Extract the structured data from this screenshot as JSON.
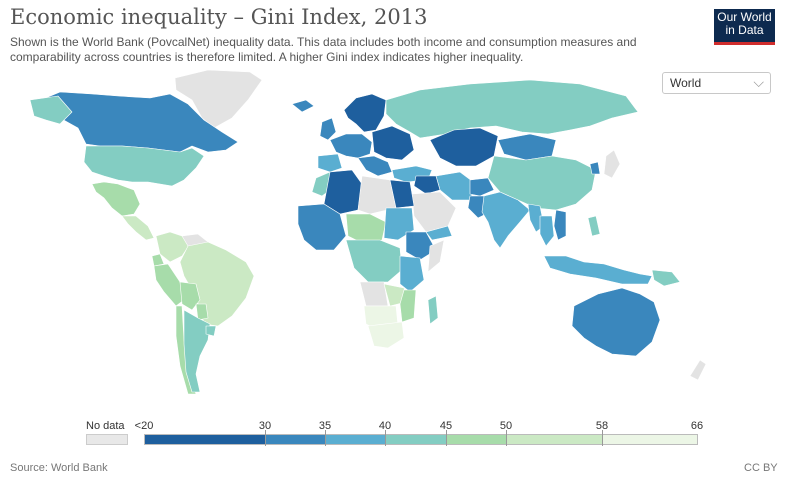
{
  "header": {
    "title": "Economic inequality – Gini Index, 2013",
    "subtitle": "Shown is the World Bank (PovcalNet) inequality data. This data includes both income and consumption measures and comparability across countries is therefore limited. A higher Gini index indicates higher inequality."
  },
  "logo": {
    "line1": "Our World",
    "line2": "in Data"
  },
  "region_select": {
    "value": "World",
    "chevron_icon": "chevron-down-icon"
  },
  "legend": {
    "no_data_label": "No data",
    "tick_labels": [
      "<20",
      "30",
      "35",
      "40",
      "45",
      "50",
      "58",
      "66"
    ],
    "colors": [
      "#1e5f9e",
      "#3a87bd",
      "#5aaed1",
      "#83cdc2",
      "#a7dcaa",
      "#cbe9c4",
      "#ecf6e6"
    ],
    "no_data_color": "#e8e8e8"
  },
  "footer": {
    "source": "Source: World Bank",
    "license": "CC BY"
  },
  "colors": {
    "ocean": "#ffffff",
    "border": "#ffffff",
    "no_data": "#e3e3e3"
  }
}
